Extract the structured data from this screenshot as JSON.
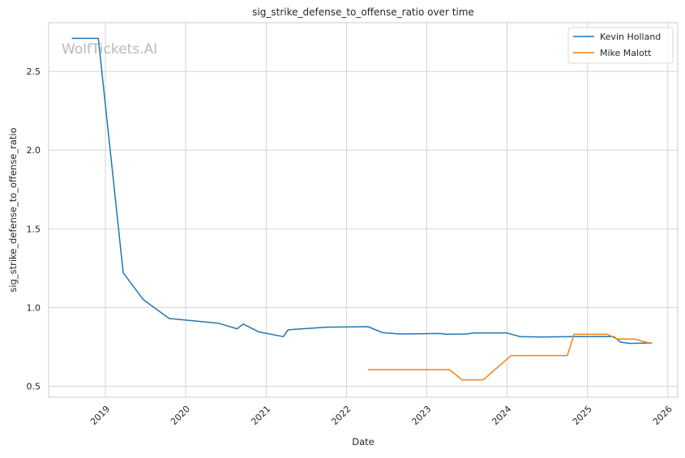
{
  "chart_data": {
    "type": "line",
    "title": "sig_strike_defense_to_offense_ratio over time",
    "xlabel": "Date",
    "ylabel": "sig_strike_defense_to_offense_ratio",
    "watermark": "WolfTickets.AI",
    "xlim": [
      "2018-04-18",
      "2026-02-15"
    ],
    "ylim": [
      0.43,
      2.81
    ],
    "x_ticks": [
      "2019-01-01",
      "2020-01-01",
      "2021-01-01",
      "2022-01-01",
      "2023-01-01",
      "2024-01-01",
      "2025-01-01",
      "2026-01-01"
    ],
    "x_tick_labels": [
      "2019",
      "2020",
      "2021",
      "2022",
      "2023",
      "2024",
      "2025",
      "2026"
    ],
    "y_ticks": [
      0.5,
      1.0,
      1.5,
      2.0,
      2.5
    ],
    "y_tick_labels": [
      "0.5",
      "1.0",
      "1.5",
      "2.0",
      "2.5"
    ],
    "grid": true,
    "legend_position": "top-right",
    "series": [
      {
        "name": "Kevin Holland",
        "color": "#1f77b4",
        "points": [
          [
            "2018-08-01",
            2.71
          ],
          [
            "2018-11-30",
            2.71
          ],
          [
            "2019-03-23",
            1.22
          ],
          [
            "2019-06-22",
            1.05
          ],
          [
            "2019-10-18",
            0.93
          ],
          [
            "2020-05-30",
            0.9
          ],
          [
            "2020-08-22",
            0.865
          ],
          [
            "2020-09-19",
            0.895
          ],
          [
            "2020-10-31",
            0.865
          ],
          [
            "2020-11-28",
            0.845
          ],
          [
            "2021-03-20",
            0.815
          ],
          [
            "2021-04-10",
            0.858
          ],
          [
            "2021-10-01",
            0.875
          ],
          [
            "2022-04-09",
            0.878
          ],
          [
            "2022-06-15",
            0.84
          ],
          [
            "2022-09-01",
            0.832
          ],
          [
            "2023-03-01",
            0.835
          ],
          [
            "2023-04-01",
            0.83
          ],
          [
            "2023-07-01",
            0.832
          ],
          [
            "2023-08-01",
            0.838
          ],
          [
            "2024-01-01",
            0.838
          ],
          [
            "2024-03-01",
            0.815
          ],
          [
            "2024-06-01",
            0.812
          ],
          [
            "2024-11-01",
            0.815
          ],
          [
            "2025-05-01",
            0.815
          ],
          [
            "2025-06-01",
            0.78
          ],
          [
            "2025-07-15",
            0.772
          ],
          [
            "2025-10-20",
            0.775
          ]
        ]
      },
      {
        "name": "Mike Malott",
        "color": "#ff7f0e",
        "points": [
          [
            "2022-04-09",
            0.605
          ],
          [
            "2023-04-15",
            0.605
          ],
          [
            "2023-06-10",
            0.54
          ],
          [
            "2023-09-15",
            0.54
          ],
          [
            "2024-01-20",
            0.695
          ],
          [
            "2024-10-01",
            0.695
          ],
          [
            "2024-11-01",
            0.83
          ],
          [
            "2025-04-01",
            0.83
          ],
          [
            "2025-05-15",
            0.8
          ],
          [
            "2025-08-01",
            0.8
          ],
          [
            "2025-10-20",
            0.77
          ]
        ]
      }
    ]
  }
}
